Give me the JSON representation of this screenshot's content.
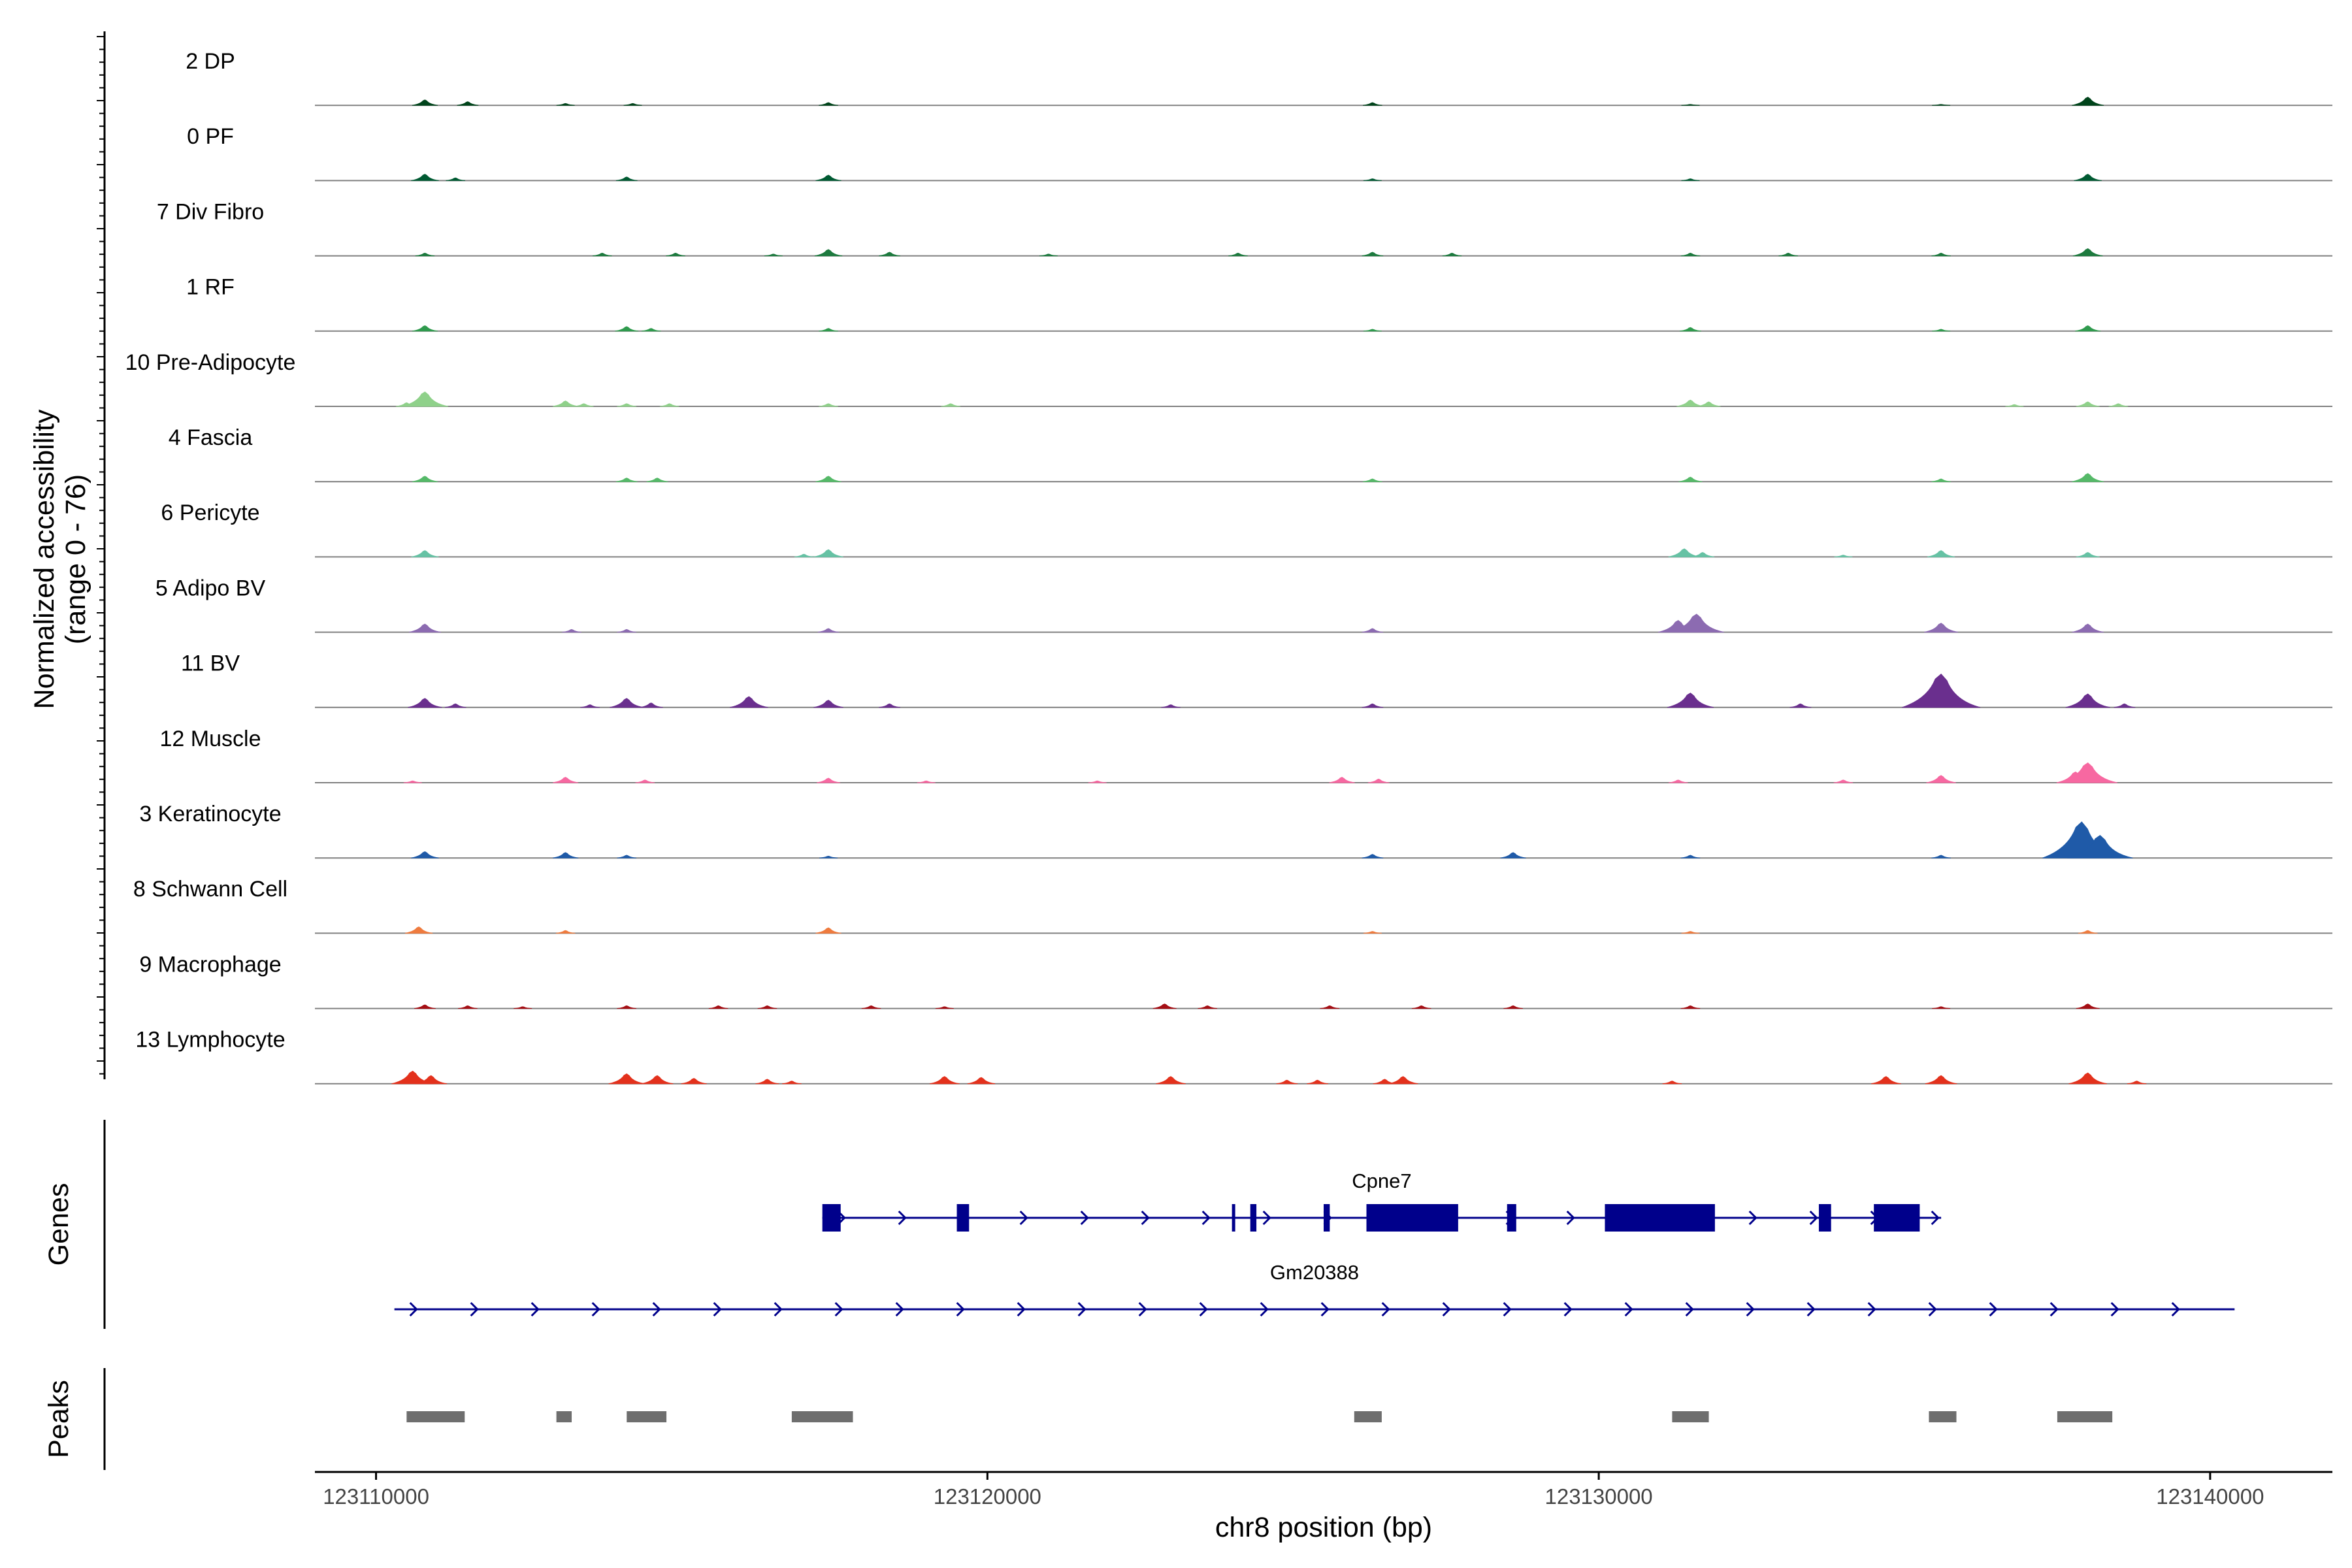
{
  "chart_data": {
    "type": "area",
    "title": "",
    "chromosome": "chr8",
    "xlabel": "chr8 position (bp)",
    "xlim": [
      123109000,
      123142000
    ],
    "x_ticks": [
      123110000,
      123120000,
      123130000,
      123140000
    ],
    "x_tick_labels": [
      "123110000",
      "123120000",
      "123130000",
      "123140000"
    ],
    "ylabel_line1": "Normalized accessibility",
    "ylabel_line2": "(range 0 - 76)",
    "ylim": [
      0,
      76
    ],
    "genes_panel_label": "Genes",
    "peaks_panel_label": "Peaks",
    "series": [
      {
        "name": "2 DP",
        "color": "#00441b",
        "peaks": [
          [
            123110800,
            6
          ],
          [
            123111500,
            4
          ],
          [
            123113100,
            2
          ],
          [
            123114200,
            2
          ],
          [
            123117400,
            3
          ],
          [
            123126300,
            3
          ],
          [
            123131500,
            1
          ],
          [
            123135600,
            1
          ],
          [
            123138000,
            9
          ]
        ]
      },
      {
        "name": "0 PF",
        "color": "#005a32",
        "peaks": [
          [
            123110800,
            7
          ],
          [
            123111300,
            3
          ],
          [
            123114100,
            4
          ],
          [
            123117400,
            6
          ],
          [
            123126300,
            2
          ],
          [
            123131500,
            2
          ],
          [
            123138000,
            7
          ]
        ]
      },
      {
        "name": "7 Div Fibro",
        "color": "#1d7a3e",
        "peaks": [
          [
            123110800,
            3
          ],
          [
            123113700,
            3
          ],
          [
            123114900,
            3
          ],
          [
            123116500,
            2
          ],
          [
            123117400,
            7
          ],
          [
            123118400,
            4
          ],
          [
            123121000,
            2
          ],
          [
            123124100,
            3
          ],
          [
            123126300,
            4
          ],
          [
            123127600,
            3
          ],
          [
            123131500,
            3
          ],
          [
            123133100,
            3
          ],
          [
            123135600,
            3
          ],
          [
            123138000,
            8
          ]
        ]
      },
      {
        "name": "1 RF",
        "color": "#2f9a4d",
        "peaks": [
          [
            123110800,
            6
          ],
          [
            123114100,
            5
          ],
          [
            123114500,
            3
          ],
          [
            123117400,
            3
          ],
          [
            123126300,
            2
          ],
          [
            123131500,
            4
          ],
          [
            123135600,
            2
          ],
          [
            123138000,
            6
          ]
        ]
      },
      {
        "name": "10 Pre-Adipocyte",
        "color": "#8fd18a",
        "peaks": [
          [
            123110500,
            4
          ],
          [
            123110800,
            16
          ],
          [
            123113100,
            6
          ],
          [
            123113400,
            3
          ],
          [
            123114100,
            3
          ],
          [
            123114800,
            3
          ],
          [
            123117400,
            3
          ],
          [
            123119400,
            3
          ],
          [
            123131500,
            7
          ],
          [
            123131800,
            5
          ],
          [
            123136800,
            2
          ],
          [
            123138000,
            5
          ],
          [
            123138500,
            3
          ]
        ]
      },
      {
        "name": "4 Fascia",
        "color": "#55b968",
        "peaks": [
          [
            123110800,
            6
          ],
          [
            123114100,
            4
          ],
          [
            123114600,
            4
          ],
          [
            123117400,
            6
          ],
          [
            123126300,
            3
          ],
          [
            123131500,
            5
          ],
          [
            123135600,
            3
          ],
          [
            123138000,
            9
          ]
        ]
      },
      {
        "name": "6 Pericyte",
        "color": "#66c2a4",
        "peaks": [
          [
            123110800,
            7
          ],
          [
            123117400,
            8
          ],
          [
            123117000,
            3
          ],
          [
            123131400,
            9
          ],
          [
            123131700,
            5
          ],
          [
            123135600,
            7
          ],
          [
            123138000,
            5
          ],
          [
            123134000,
            2
          ]
        ]
      },
      {
        "name": "5 Adipo BV",
        "color": "#8c6bb1",
        "peaks": [
          [
            123110800,
            9
          ],
          [
            123113200,
            3
          ],
          [
            123114100,
            3
          ],
          [
            123117400,
            4
          ],
          [
            123126300,
            4
          ],
          [
            123131300,
            13
          ],
          [
            123131600,
            20
          ],
          [
            123135600,
            10
          ],
          [
            123138000,
            9
          ]
        ]
      },
      {
        "name": "11 BV",
        "color": "#6a2f8e",
        "peaks": [
          [
            123110800,
            10
          ],
          [
            123111300,
            4
          ],
          [
            123113500,
            3
          ],
          [
            123114100,
            10
          ],
          [
            123114500,
            5
          ],
          [
            123116100,
            12
          ],
          [
            123117400,
            8
          ],
          [
            123118400,
            4
          ],
          [
            123123000,
            3
          ],
          [
            123126300,
            4
          ],
          [
            123131500,
            16
          ],
          [
            123133300,
            4
          ],
          [
            123135600,
            37
          ],
          [
            123138000,
            15
          ],
          [
            123138600,
            4
          ]
        ]
      },
      {
        "name": "12 Muscle",
        "color": "#f768a1",
        "peaks": [
          [
            123110600,
            2
          ],
          [
            123113100,
            6
          ],
          [
            123114400,
            3
          ],
          [
            123117400,
            5
          ],
          [
            123119000,
            2
          ],
          [
            123121800,
            2
          ],
          [
            123125800,
            6
          ],
          [
            123126400,
            4
          ],
          [
            123131300,
            3
          ],
          [
            123134000,
            3
          ],
          [
            123135600,
            8
          ],
          [
            123137800,
            12
          ],
          [
            123138000,
            22
          ]
        ]
      },
      {
        "name": "3 Keratinocyte",
        "color": "#1f5aa8",
        "peaks": [
          [
            123110800,
            7
          ],
          [
            123113100,
            6
          ],
          [
            123114100,
            3
          ],
          [
            123117400,
            2
          ],
          [
            123126300,
            4
          ],
          [
            123128600,
            6
          ],
          [
            123131500,
            3
          ],
          [
            123135600,
            3
          ],
          [
            123137900,
            40
          ],
          [
            123138200,
            25
          ]
        ]
      },
      {
        "name": "8 Schwann Cell",
        "color": "#ef7b3e",
        "peaks": [
          [
            123110700,
            7
          ],
          [
            123113100,
            3
          ],
          [
            123117400,
            6
          ],
          [
            123126300,
            2
          ],
          [
            123131500,
            2
          ],
          [
            123138000,
            3
          ]
        ]
      },
      {
        "name": "9 Macrophage",
        "color": "#a50f15",
        "peaks": [
          [
            123110800,
            4
          ],
          [
            123111500,
            3
          ],
          [
            123112400,
            2
          ],
          [
            123114100,
            3
          ],
          [
            123115600,
            3
          ],
          [
            123116400,
            3
          ],
          [
            123118100,
            3
          ],
          [
            123119300,
            2
          ],
          [
            123122900,
            5
          ],
          [
            123123600,
            3
          ],
          [
            123125600,
            3
          ],
          [
            123127100,
            3
          ],
          [
            123128600,
            3
          ],
          [
            123131500,
            3
          ],
          [
            123135600,
            2
          ],
          [
            123138000,
            5
          ]
        ]
      },
      {
        "name": "13 Lymphocyte",
        "color": "#e3311c",
        "peaks": [
          [
            123110600,
            14
          ],
          [
            123110900,
            9
          ],
          [
            123114100,
            11
          ],
          [
            123114600,
            9
          ],
          [
            123115200,
            6
          ],
          [
            123116400,
            5
          ],
          [
            123116800,
            3
          ],
          [
            123119300,
            8
          ],
          [
            123119900,
            7
          ],
          [
            123123000,
            8
          ],
          [
            123124900,
            4
          ],
          [
            123125400,
            4
          ],
          [
            123126500,
            5
          ],
          [
            123126800,
            8
          ],
          [
            123131200,
            3
          ],
          [
            123134700,
            8
          ],
          [
            123135600,
            9
          ],
          [
            123138000,
            12
          ],
          [
            123138800,
            3
          ]
        ]
      }
    ],
    "genes": [
      {
        "name": "Cpne7",
        "start": 123117300,
        "end": 123135600,
        "strand": "+",
        "exons": [
          [
            123117300,
            123117600
          ],
          [
            123119500,
            123119700
          ],
          [
            123124000,
            123124050
          ],
          [
            123124300,
            123124400
          ],
          [
            123125500,
            123125600
          ],
          [
            123126200,
            123127700
          ],
          [
            123128500,
            123128650
          ],
          [
            123130100,
            123131900
          ],
          [
            123133600,
            123133800
          ],
          [
            123134500,
            123135250
          ]
        ]
      },
      {
        "name": "Gm20388",
        "start": 123110300,
        "end": 123140400,
        "strand": "+",
        "exons": []
      }
    ],
    "peaks_regions": [
      [
        123110500,
        123111450
      ],
      [
        123112950,
        123113200
      ],
      [
        123114100,
        123114750
      ],
      [
        123116800,
        123117800
      ],
      [
        123126000,
        123126450
      ],
      [
        123131200,
        123131800
      ],
      [
        123135400,
        123135850
      ],
      [
        123137500,
        123138400
      ]
    ]
  }
}
